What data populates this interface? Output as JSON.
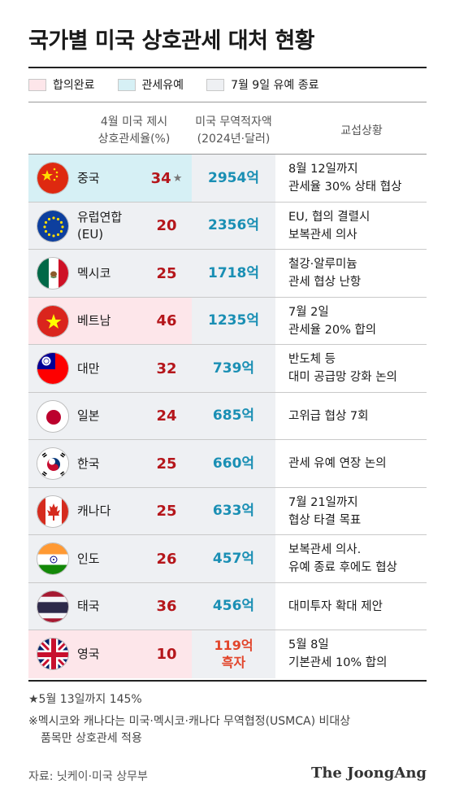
{
  "title": "국가별 미국 상호관세 대처 현황",
  "legend": [
    {
      "label": "합의완료",
      "color": "#fde6ea"
    },
    {
      "label": "관세유예",
      "color": "#d6f0f5"
    },
    {
      "label": "7월 9일 유예 종료",
      "color": "#eef0f3"
    }
  ],
  "headers": {
    "tariff_line1": "4월 미국 제시",
    "tariff_line2": "상호관세율(%)",
    "deficit_line1": "미국 무역적자액",
    "deficit_line2": "(2024년·달러)",
    "negotiation": "교섭상황"
  },
  "colors": {
    "agreed": "#fde6ea",
    "deferred": "#d6f0f5",
    "ended": "#eef0f3",
    "tariff": "#b5161b",
    "deficit": "#1a8fb4",
    "surplus": "#e2452b"
  },
  "chart_data": {
    "type": "table",
    "columns": [
      "국가",
      "4월 미국 제시 상호관세율(%)",
      "미국 무역적자액(2024년·달러)",
      "교섭상황"
    ],
    "rows": [
      {
        "country": "중국",
        "country2": "",
        "status": "deferred",
        "flag": "china-flag-icon",
        "tariff": "34",
        "star": "★",
        "deficit": "2954억",
        "deficit2": "",
        "nego1": "8월 12일까지",
        "nego2": "관세율 30% 상태 협상"
      },
      {
        "country": "유럽연합",
        "country2": "(EU)",
        "status": "ended",
        "flag": "eu-flag-icon",
        "tariff": "20",
        "star": "",
        "deficit": "2356억",
        "deficit2": "",
        "nego1": "EU, 협의 결렬시",
        "nego2": "보복관세 의사"
      },
      {
        "country": "멕시코",
        "country2": "",
        "status": "ended",
        "flag": "mexico-flag-icon",
        "tariff": "25",
        "star": "",
        "deficit": "1718억",
        "deficit2": "",
        "nego1": "철강·알루미늄",
        "nego2": "관세 협상 난항"
      },
      {
        "country": "베트남",
        "country2": "",
        "status": "agreed",
        "flag": "vietnam-flag-icon",
        "tariff": "46",
        "star": "",
        "deficit": "1235억",
        "deficit2": "",
        "nego1": "7월 2일",
        "nego2": "관세율 20% 합의"
      },
      {
        "country": "대만",
        "country2": "",
        "status": "ended",
        "flag": "taiwan-flag-icon",
        "tariff": "32",
        "star": "",
        "deficit": "739억",
        "deficit2": "",
        "nego1": "반도체 등",
        "nego2": "대미 공급망 강화 논의"
      },
      {
        "country": "일본",
        "country2": "",
        "status": "ended",
        "flag": "japan-flag-icon",
        "tariff": "24",
        "star": "",
        "deficit": "685억",
        "deficit2": "",
        "nego1": "고위급 협상 7회",
        "nego2": ""
      },
      {
        "country": "한국",
        "country2": "",
        "status": "ended",
        "flag": "korea-flag-icon",
        "tariff": "25",
        "star": "",
        "deficit": "660억",
        "deficit2": "",
        "nego1": "관세 유예 연장 논의",
        "nego2": ""
      },
      {
        "country": "캐나다",
        "country2": "",
        "status": "ended",
        "flag": "canada-flag-icon",
        "tariff": "25",
        "star": "",
        "deficit": "633억",
        "deficit2": "",
        "nego1": "7월 21일까지",
        "nego2": "협상 타결 목표"
      },
      {
        "country": "인도",
        "country2": "",
        "status": "ended",
        "flag": "india-flag-icon",
        "tariff": "26",
        "star": "",
        "deficit": "457억",
        "deficit2": "",
        "nego1": "보복관세 의사.",
        "nego2": "유예 종료 후에도 협상"
      },
      {
        "country": "태국",
        "country2": "",
        "status": "ended",
        "flag": "thailand-flag-icon",
        "tariff": "36",
        "star": "",
        "deficit": "456억",
        "deficit2": "",
        "nego1": "대미투자 확대 제안",
        "nego2": ""
      },
      {
        "country": "영국",
        "country2": "",
        "status": "agreed",
        "flag": "uk-flag-icon",
        "tariff": "10",
        "star": "",
        "deficit": "119억",
        "deficit2": "흑자",
        "nego1": "5월 8일",
        "nego2": "기본관세 10% 합의"
      }
    ]
  },
  "footnote1": "★5월 13일까지 145%",
  "footnote2_line1": "※멕시코와 캐나다는 미국·멕시코·캐나다 무역협정(USMCA) 비대상",
  "footnote2_line2": "품목만 상호관세 적용",
  "source": "자료: 닛케이·미국 상무부",
  "brand": "The JoongAng"
}
